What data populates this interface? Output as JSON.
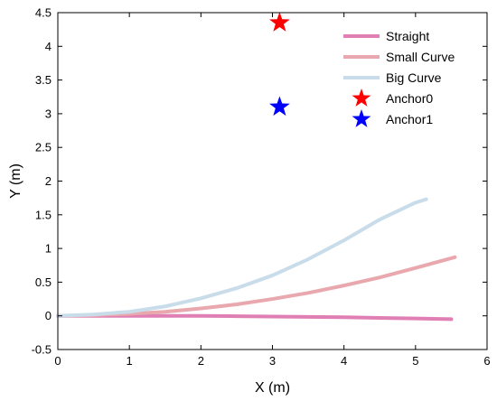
{
  "chart_data": {
    "type": "line",
    "title": "",
    "xlabel": "X (m)",
    "ylabel": "Y (m)",
    "xlim": [
      0,
      6
    ],
    "ylim": [
      -0.5,
      4.5
    ],
    "xticks": [
      "0",
      "1",
      "2",
      "3",
      "4",
      "5",
      "6"
    ],
    "yticks": [
      "-0.5",
      "0",
      "0.5",
      "1",
      "1.5",
      "2",
      "2.5",
      "3",
      "3.5",
      "4",
      "4.5"
    ],
    "grid": false,
    "legend_position": "top-right",
    "series": [
      {
        "name": "Straight",
        "kind": "line",
        "color": "#e07fb4",
        "x": [
          0,
          0.5,
          1,
          1.5,
          2,
          2.5,
          3,
          3.5,
          4,
          4.5,
          5,
          5.5
        ],
        "y": [
          0,
          0,
          0,
          0,
          0,
          -0.005,
          -0.01,
          -0.015,
          -0.02,
          -0.03,
          -0.04,
          -0.05
        ]
      },
      {
        "name": "Small Curve",
        "kind": "line",
        "color": "#e8a8ae",
        "x": [
          0,
          0.5,
          1,
          1.5,
          2,
          2.5,
          3,
          3.5,
          4,
          4.5,
          5,
          5.55
        ],
        "y": [
          0,
          0.01,
          0.03,
          0.06,
          0.11,
          0.17,
          0.25,
          0.34,
          0.45,
          0.57,
          0.71,
          0.87
        ]
      },
      {
        "name": "Big Curve",
        "kind": "line",
        "color": "#c8dcea",
        "x": [
          0,
          0.5,
          1,
          1.5,
          2,
          2.5,
          3,
          3.5,
          4,
          4.5,
          5,
          5.15
        ],
        "y": [
          0,
          0.02,
          0.06,
          0.14,
          0.26,
          0.41,
          0.6,
          0.84,
          1.12,
          1.43,
          1.68,
          1.73
        ]
      },
      {
        "name": "Anchor0",
        "kind": "star",
        "color": "#ff0000",
        "x": [
          3.1
        ],
        "y": [
          4.35
        ]
      },
      {
        "name": "Anchor1",
        "kind": "star",
        "color": "#0000ff",
        "x": [
          3.1
        ],
        "y": [
          3.1
        ]
      }
    ]
  }
}
